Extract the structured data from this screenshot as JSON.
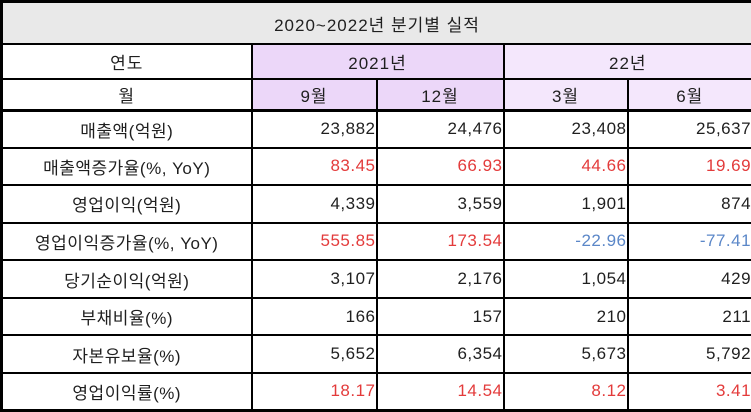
{
  "title": "2020~2022년  분기별  실적",
  "header": {
    "year_label": "연도",
    "month_label": "월",
    "year_groups": [
      {
        "label": "2021년",
        "months": [
          "9월",
          "12월"
        ]
      },
      {
        "label": "22년",
        "months": [
          "3월",
          "6월"
        ]
      }
    ]
  },
  "rows": [
    {
      "label": "매출액(억원)",
      "values": [
        {
          "t": "23,882",
          "c": "default"
        },
        {
          "t": "24,476",
          "c": "default"
        },
        {
          "t": "23,408",
          "c": "default"
        },
        {
          "t": "25,637",
          "c": "default"
        }
      ]
    },
    {
      "label": "매출액증가율(%, YoY)",
      "values": [
        {
          "t": "83.45",
          "c": "up"
        },
        {
          "t": "66.93",
          "c": "up"
        },
        {
          "t": "44.66",
          "c": "up"
        },
        {
          "t": "19.69",
          "c": "up"
        }
      ]
    },
    {
      "label": "영업이익(억원)",
      "values": [
        {
          "t": "4,339",
          "c": "default"
        },
        {
          "t": "3,559",
          "c": "default"
        },
        {
          "t": "1,901",
          "c": "default"
        },
        {
          "t": "874",
          "c": "default"
        }
      ]
    },
    {
      "label": "영업이익증가율(%, YoY)",
      "values": [
        {
          "t": "555.85",
          "c": "up"
        },
        {
          "t": "173.54",
          "c": "up"
        },
        {
          "t": "-22.96",
          "c": "down"
        },
        {
          "t": "-77.41",
          "c": "down"
        }
      ]
    },
    {
      "label": "당기순이익(억원)",
      "values": [
        {
          "t": "3,107",
          "c": "default"
        },
        {
          "t": "2,176",
          "c": "default"
        },
        {
          "t": "1,054",
          "c": "default"
        },
        {
          "t": "429",
          "c": "default"
        }
      ]
    },
    {
      "label": "부채비율(%)",
      "values": [
        {
          "t": "166",
          "c": "default"
        },
        {
          "t": "157",
          "c": "default"
        },
        {
          "t": "210",
          "c": "default"
        },
        {
          "t": "211",
          "c": "default"
        }
      ]
    },
    {
      "label": "자본유보율(%)",
      "values": [
        {
          "t": "5,652",
          "c": "default"
        },
        {
          "t": "6,354",
          "c": "default"
        },
        {
          "t": "5,673",
          "c": "default"
        },
        {
          "t": "5,792",
          "c": "default"
        }
      ]
    },
    {
      "label": "영업이익률(%)",
      "values": [
        {
          "t": "18.17",
          "c": "up"
        },
        {
          "t": "14.54",
          "c": "up"
        },
        {
          "t": "8.12",
          "c": "up"
        },
        {
          "t": "3.41",
          "c": "up"
        }
      ]
    }
  ],
  "colors": {
    "default": "#1f1f1f",
    "up": "#e33b3b",
    "down": "#5b87c8",
    "header_2021_bg": "#ecd7f9",
    "header_2022_bg": "#f4e7fc",
    "title_bg": "#e9e9e9",
    "border": "#000000"
  }
}
